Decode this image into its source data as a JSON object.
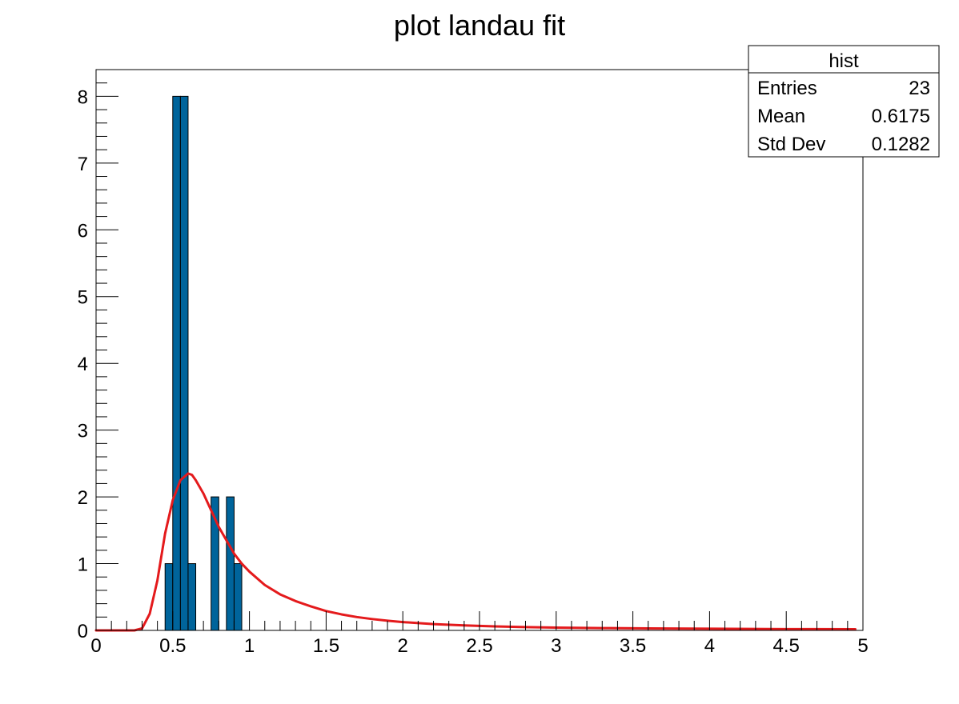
{
  "chart_data": {
    "type": "bar",
    "title": "plot landau fit",
    "xlabel": "",
    "ylabel": "",
    "xlim": [
      0,
      5
    ],
    "ylim": [
      0,
      8.4
    ],
    "grid": false,
    "bin_width": 0.05,
    "histogram": {
      "name": "hist",
      "bins": [
        {
          "x_low": 0.45,
          "x_high": 0.5,
          "count": 1
        },
        {
          "x_low": 0.5,
          "x_high": 0.55,
          "count": 8
        },
        {
          "x_low": 0.55,
          "x_high": 0.6,
          "count": 8
        },
        {
          "x_low": 0.6,
          "x_high": 0.65,
          "count": 1
        },
        {
          "x_low": 0.75,
          "x_high": 0.8,
          "count": 2
        },
        {
          "x_low": 0.85,
          "x_high": 0.9,
          "count": 2
        },
        {
          "x_low": 0.9,
          "x_high": 0.95,
          "count": 1
        }
      ],
      "fill_color": "#00649b",
      "line_color": "#000000"
    },
    "fit": {
      "function": "landau",
      "color": "#e41a1c",
      "points": [
        [
          0.0,
          0.0
        ],
        [
          0.25,
          0.0
        ],
        [
          0.3,
          0.03
        ],
        [
          0.35,
          0.25
        ],
        [
          0.4,
          0.75
        ],
        [
          0.45,
          1.45
        ],
        [
          0.5,
          1.95
        ],
        [
          0.55,
          2.25
        ],
        [
          0.6,
          2.35
        ],
        [
          0.625,
          2.33
        ],
        [
          0.65,
          2.25
        ],
        [
          0.7,
          2.05
        ],
        [
          0.75,
          1.8
        ],
        [
          0.8,
          1.55
        ],
        [
          0.85,
          1.35
        ],
        [
          0.9,
          1.15
        ],
        [
          0.95,
          1.0
        ],
        [
          1.0,
          0.88
        ],
        [
          1.1,
          0.68
        ],
        [
          1.2,
          0.54
        ],
        [
          1.3,
          0.44
        ],
        [
          1.4,
          0.36
        ],
        [
          1.5,
          0.29
        ],
        [
          1.6,
          0.24
        ],
        [
          1.7,
          0.2
        ],
        [
          1.8,
          0.17
        ],
        [
          1.9,
          0.145
        ],
        [
          2.0,
          0.125
        ],
        [
          2.2,
          0.095
        ],
        [
          2.4,
          0.075
        ],
        [
          2.6,
          0.06
        ],
        [
          2.8,
          0.05
        ],
        [
          3.0,
          0.042
        ],
        [
          3.3,
          0.035
        ],
        [
          3.6,
          0.03
        ],
        [
          4.0,
          0.025
        ],
        [
          4.5,
          0.02
        ],
        [
          4.95,
          0.018
        ]
      ]
    },
    "x_ticks": [
      {
        "value": 0,
        "label": "0"
      },
      {
        "value": 0.5,
        "label": "0.5"
      },
      {
        "value": 1,
        "label": "1"
      },
      {
        "value": 1.5,
        "label": "1.5"
      },
      {
        "value": 2,
        "label": "2"
      },
      {
        "value": 2.5,
        "label": "2.5"
      },
      {
        "value": 3,
        "label": "3"
      },
      {
        "value": 3.5,
        "label": "3.5"
      },
      {
        "value": 4,
        "label": "4"
      },
      {
        "value": 4.5,
        "label": "4.5"
      },
      {
        "value": 5,
        "label": "5"
      }
    ],
    "x_minor_step": 0.1,
    "y_ticks": [
      {
        "value": 0,
        "label": "0"
      },
      {
        "value": 1,
        "label": "1"
      },
      {
        "value": 2,
        "label": "2"
      },
      {
        "value": 3,
        "label": "3"
      },
      {
        "value": 4,
        "label": "4"
      },
      {
        "value": 5,
        "label": "5"
      },
      {
        "value": 6,
        "label": "6"
      },
      {
        "value": 7,
        "label": "7"
      },
      {
        "value": 8,
        "label": "8"
      }
    ],
    "y_minor_step": 0.2,
    "stats_box": {
      "title": "hist",
      "placement": "top-right",
      "rows": [
        {
          "label": "Entries",
          "value": "23"
        },
        {
          "label": "Mean",
          "value": "0.6175"
        },
        {
          "label": "Std Dev",
          "value": "0.1282"
        }
      ]
    }
  }
}
